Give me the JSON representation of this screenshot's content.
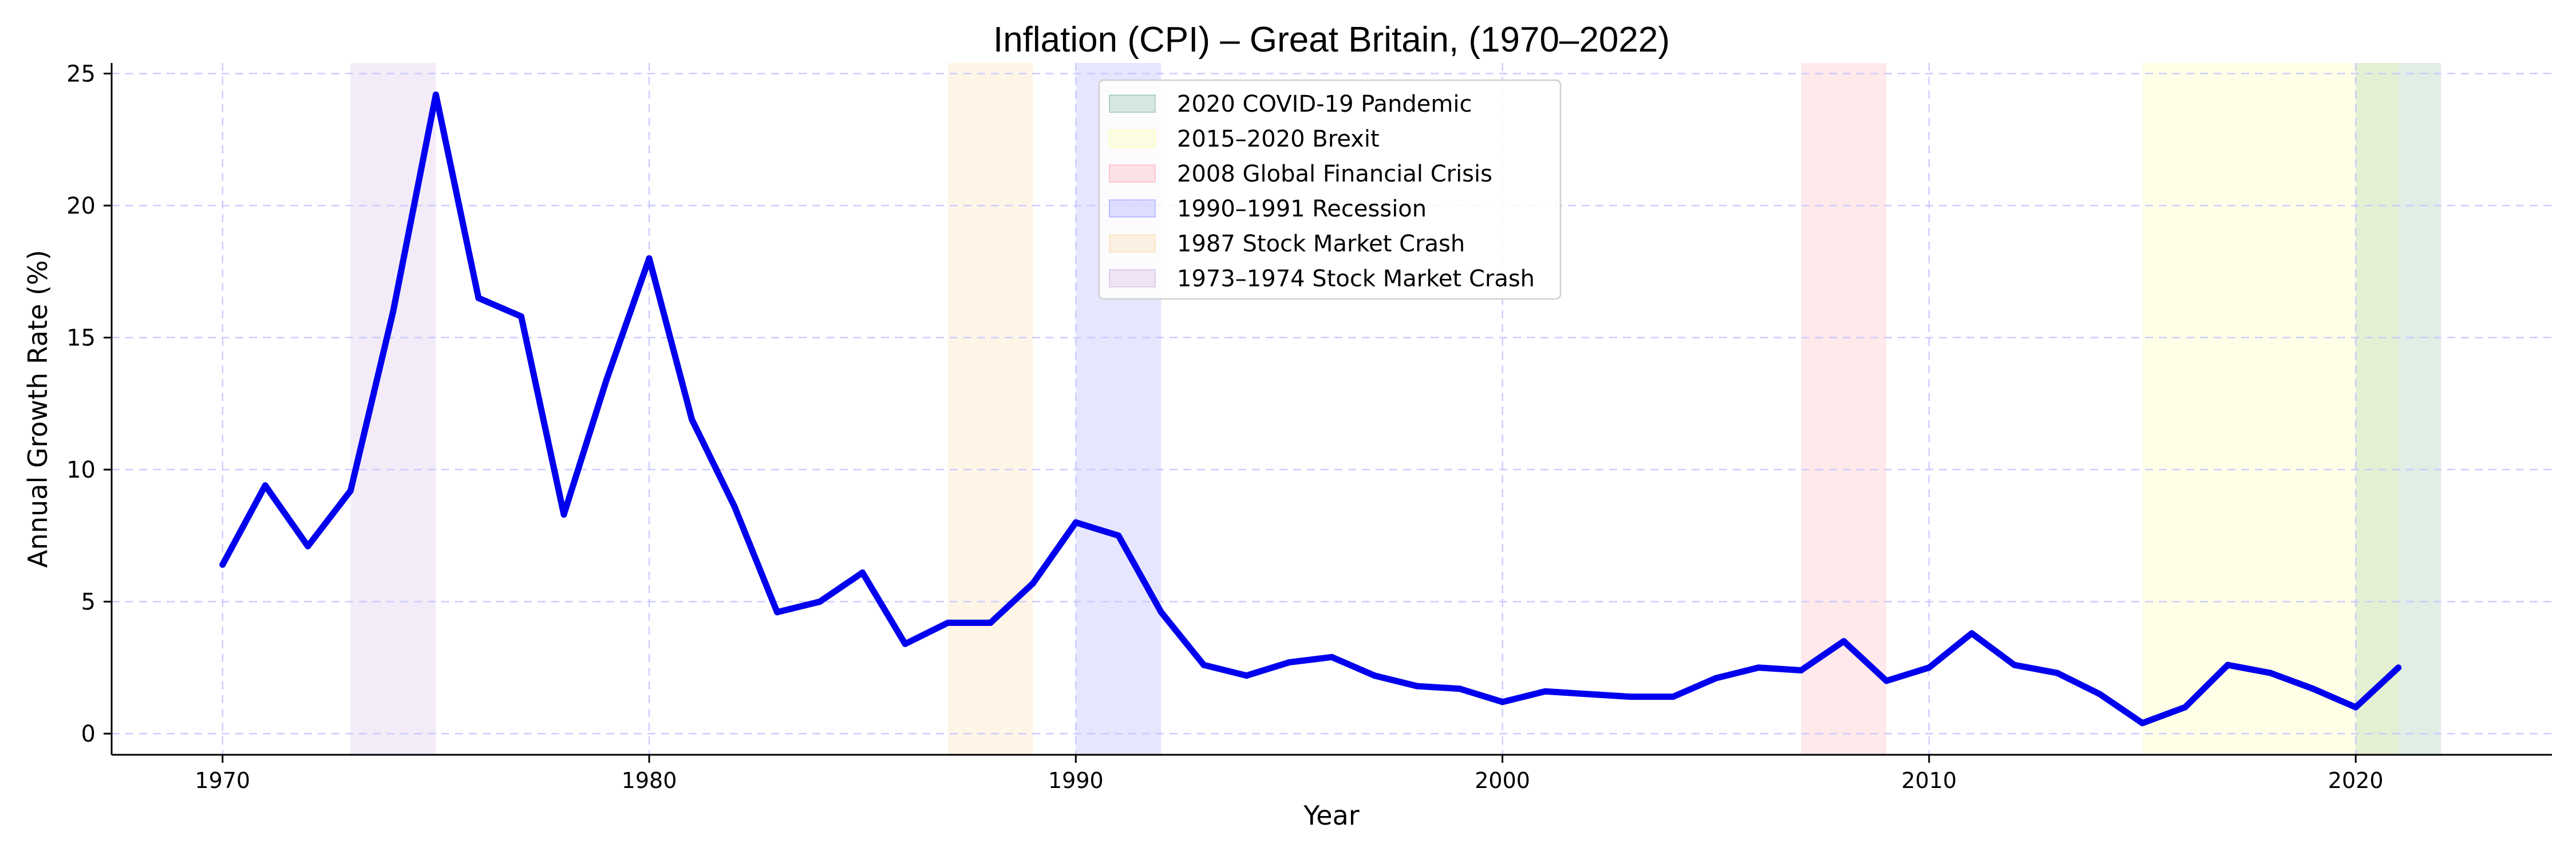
{
  "chart_data": {
    "type": "line",
    "title": "Inflation (CPI) – Great Britain, (1970–2022)",
    "xlabel": "Year",
    "ylabel": "Annual Growth Rate (%)",
    "xlim": [
      1967.4,
      2024.6
    ],
    "ylim": [
      -0.8,
      25.4
    ],
    "x_ticks": [
      1970,
      1980,
      1990,
      2000,
      2010,
      2020
    ],
    "y_ticks": [
      0,
      5,
      10,
      15,
      20,
      25
    ],
    "grid": true,
    "legend_position": "top-center",
    "series": [
      {
        "color": "#0000ee",
        "x": [
          1970,
          1971,
          1972,
          1973,
          1974,
          1975,
          1976,
          1977,
          1978,
          1979,
          1980,
          1981,
          1982,
          1983,
          1984,
          1985,
          1986,
          1987,
          1988,
          1989,
          1990,
          1991,
          1992,
          1993,
          1994,
          1995,
          1996,
          1997,
          1998,
          1999,
          2000,
          2001,
          2002,
          2003,
          2004,
          2005,
          2006,
          2007,
          2008,
          2009,
          2010,
          2011,
          2012,
          2013,
          2014,
          2015,
          2016,
          2017,
          2018,
          2019,
          2020,
          2021
        ],
        "values": [
          6.4,
          9.4,
          7.1,
          9.2,
          16.0,
          24.2,
          16.5,
          15.8,
          8.3,
          13.4,
          18.0,
          11.9,
          8.6,
          4.6,
          5.0,
          6.1,
          3.4,
          4.2,
          4.2,
          5.7,
          8.0,
          7.5,
          4.6,
          2.6,
          2.2,
          2.7,
          2.9,
          2.2,
          1.8,
          1.7,
          1.2,
          1.6,
          1.5,
          1.4,
          1.4,
          2.1,
          2.5,
          2.4,
          3.5,
          2.0,
          2.5,
          3.8,
          2.6,
          2.3,
          1.5,
          0.4,
          1.0,
          2.6,
          2.3,
          1.7,
          1.0,
          2.5
        ]
      }
    ],
    "shaded_periods": [
      {
        "label": "2020 COVID-19 Pandemic",
        "start": 2020,
        "end": 2022,
        "color": "#2e8b57"
      },
      {
        "label": "2015–2020 Brexit",
        "start": 2015,
        "end": 2021,
        "color": "#ffff66"
      },
      {
        "label": "2008 Global Financial Crisis",
        "start": 2007,
        "end": 2009,
        "color": "#ff6b7a"
      },
      {
        "label": "1990–1991 Recession",
        "start": 1990,
        "end": 1992,
        "color": "#5555ff"
      },
      {
        "label": "1987 Stock Market Crash",
        "start": 1987,
        "end": 1989,
        "color": "#ffbe5c"
      },
      {
        "label": "1973–1974 Stock Market Crash",
        "start": 1973,
        "end": 1975,
        "color": "#b07cc6"
      }
    ]
  }
}
